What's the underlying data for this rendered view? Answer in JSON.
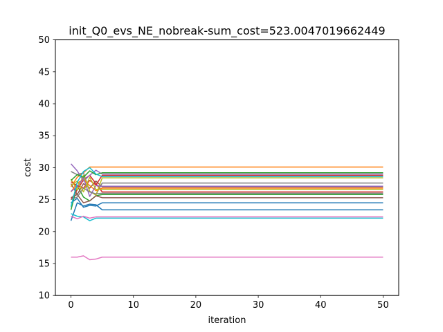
{
  "chart_data": {
    "type": "line",
    "title": "init_Q0_evs_NE_nobreak-sum_cost=523.0047019662449",
    "xlabel": "iteration",
    "ylabel": "cost",
    "xlim": [
      -2.5,
      52.5
    ],
    "ylim": [
      10,
      50
    ],
    "xticks": [
      0,
      10,
      20,
      30,
      40,
      50
    ],
    "yticks": [
      10,
      15,
      20,
      25,
      30,
      35,
      40,
      45,
      50
    ],
    "grid": false,
    "legend": "none",
    "series": [
      {
        "color": "#1f77b4",
        "x": [
          0,
          1,
          2,
          3,
          4,
          5,
          50
        ],
        "y": [
          21.7,
          24.5,
          24.0,
          24.3,
          24.2,
          23.4,
          23.4
        ]
      },
      {
        "color": "#ff7f0e",
        "x": [
          0,
          1,
          2,
          3,
          50
        ],
        "y": [
          27.0,
          28.5,
          29.2,
          30.1,
          30.1
        ]
      },
      {
        "color": "#2ca02c",
        "x": [
          0,
          1,
          2,
          3,
          4,
          5,
          50
        ],
        "y": [
          23.4,
          27.2,
          25.4,
          24.8,
          25.6,
          25.8,
          25.8
        ]
      },
      {
        "color": "#d62728",
        "x": [
          0,
          1,
          2,
          3,
          4,
          5,
          50
        ],
        "y": [
          25.0,
          26.5,
          28.1,
          28.8,
          27.5,
          26.2,
          26.2
        ]
      },
      {
        "color": "#9467bd",
        "x": [
          0,
          1,
          2,
          3,
          4,
          5,
          50
        ],
        "y": [
          30.6,
          29.5,
          27.9,
          28.8,
          29.6,
          29.0,
          29.0
        ]
      },
      {
        "color": "#8c564b",
        "x": [
          0,
          1,
          2,
          3,
          4,
          5,
          50
        ],
        "y": [
          27.5,
          25.8,
          27.5,
          26.8,
          27.9,
          27.0,
          27.0
        ]
      },
      {
        "color": "#e377c2",
        "x": [
          0,
          1,
          2,
          3,
          4,
          5,
          50
        ],
        "y": [
          16.0,
          16.0,
          16.2,
          15.6,
          15.7,
          16.0,
          16.0
        ]
      },
      {
        "color": "#7f7f7f",
        "x": [
          0,
          1,
          2,
          3,
          4,
          5,
          50
        ],
        "y": [
          29.4,
          28.9,
          29.2,
          26.3,
          25.8,
          27.6,
          27.6
        ]
      },
      {
        "color": "#bcbd22",
        "x": [
          0,
          1,
          2,
          3,
          4,
          5,
          50
        ],
        "y": [
          28.2,
          26.5,
          28.8,
          26.3,
          25.7,
          28.4,
          28.4
        ]
      },
      {
        "color": "#17becf",
        "x": [
          0,
          1,
          2,
          3,
          4,
          5,
          50
        ],
        "y": [
          22.8,
          22.4,
          22.3,
          21.7,
          22.1,
          22.1,
          22.1
        ]
      },
      {
        "color": "#1f77b4",
        "x": [
          0,
          1,
          2,
          3,
          4,
          5,
          50
        ],
        "y": [
          24.5,
          25.2,
          23.8,
          24.1,
          24.0,
          24.5,
          24.5
        ]
      },
      {
        "color": "#ff7f0e",
        "x": [
          0,
          1,
          2,
          3,
          4,
          5,
          50
        ],
        "y": [
          26.2,
          27.6,
          28.1,
          27.2,
          26.4,
          26.8,
          26.8
        ]
      },
      {
        "color": "#2ca02c",
        "x": [
          0,
          1,
          2,
          3,
          4,
          5,
          50
        ],
        "y": [
          28.0,
          28.9,
          28.5,
          29.5,
          28.9,
          29.2,
          29.2
        ]
      },
      {
        "color": "#d62728",
        "x": [
          0,
          1,
          2,
          3,
          4,
          5,
          50
        ],
        "y": [
          27.8,
          27.2,
          26.8,
          28.0,
          27.3,
          28.8,
          28.8
        ]
      },
      {
        "color": "#9467bd",
        "x": [
          0,
          1,
          2,
          3,
          4,
          5,
          50
        ],
        "y": [
          26.3,
          27.0,
          28.4,
          25.5,
          27.2,
          27.1,
          27.1
        ]
      },
      {
        "color": "#8c564b",
        "x": [
          0,
          1,
          2,
          3,
          4,
          5,
          50
        ],
        "y": [
          25.3,
          25.8,
          24.5,
          24.8,
          25.6,
          25.3,
          25.3
        ]
      },
      {
        "color": "#e377c2",
        "x": [
          0,
          1,
          2,
          3,
          4,
          5,
          50
        ],
        "y": [
          22.4,
          22.0,
          22.4,
          22.1,
          22.3,
          22.3,
          22.3
        ]
      },
      {
        "color": "#7f7f7f",
        "x": [
          0,
          1,
          2,
          3,
          4,
          5,
          50
        ],
        "y": [
          25.0,
          25.4,
          26.8,
          26.2,
          25.9,
          26.0,
          26.0
        ]
      },
      {
        "color": "#bcbd22",
        "x": [
          0,
          1,
          2,
          3,
          4,
          5,
          50
        ],
        "y": [
          27.2,
          27.9,
          26.2,
          28.5,
          26.6,
          26.6,
          26.6
        ]
      },
      {
        "color": "#17becf",
        "x": [
          0,
          1,
          2,
          3,
          4,
          5,
          50
        ],
        "y": [
          23.9,
          27.7,
          29.4,
          30.0,
          29.0,
          28.6,
          28.6
        ]
      }
    ]
  }
}
